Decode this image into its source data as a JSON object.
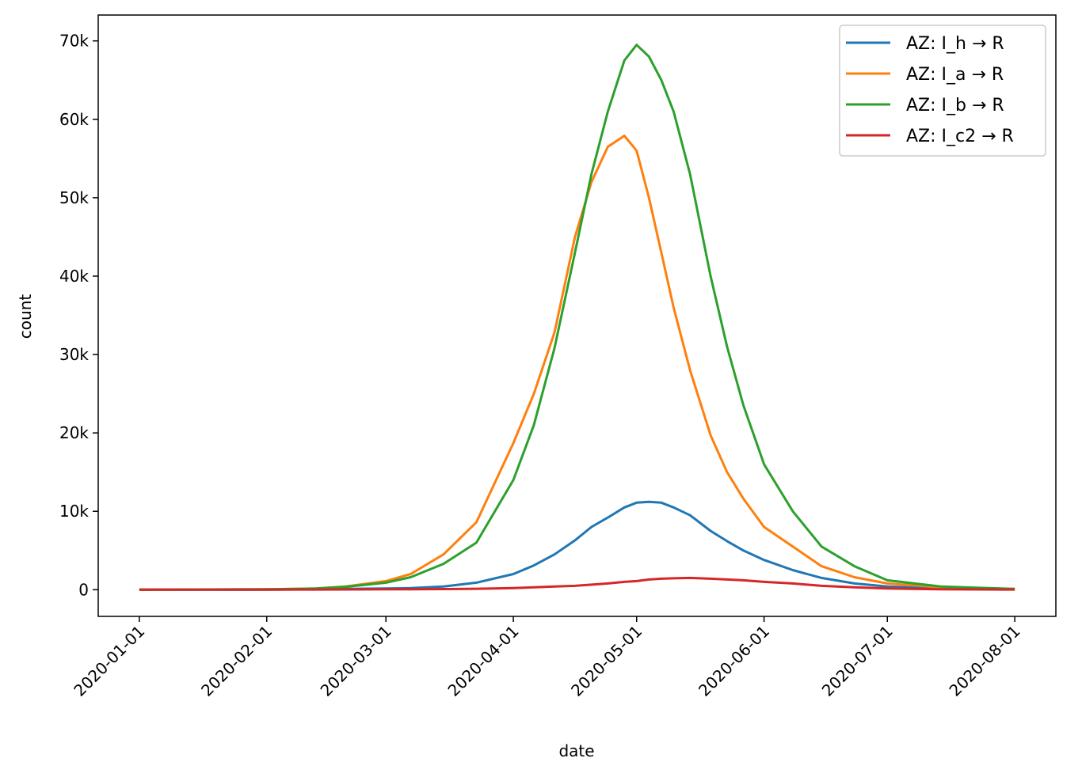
{
  "chart_data": {
    "type": "line",
    "title": "",
    "xlabel": "date",
    "ylabel": "count",
    "xlim_days": [
      -10,
      223
    ],
    "ylim": [
      -3400,
      73300
    ],
    "x_start_date": "2020-01-01",
    "x_ticks": [
      {
        "day": 0,
        "label": "2020-01-01"
      },
      {
        "day": 31,
        "label": "2020-02-01"
      },
      {
        "day": 60,
        "label": "2020-03-01"
      },
      {
        "day": 91,
        "label": "2020-04-01"
      },
      {
        "day": 121,
        "label": "2020-05-01"
      },
      {
        "day": 152,
        "label": "2020-06-01"
      },
      {
        "day": 182,
        "label": "2020-07-01"
      },
      {
        "day": 213,
        "label": "2020-08-01"
      }
    ],
    "y_ticks": [
      {
        "value": 0,
        "label": "0"
      },
      {
        "value": 10000,
        "label": "10k"
      },
      {
        "value": 20000,
        "label": "20k"
      },
      {
        "value": 30000,
        "label": "30k"
      },
      {
        "value": 40000,
        "label": "40k"
      },
      {
        "value": 50000,
        "label": "50k"
      },
      {
        "value": 60000,
        "label": "60k"
      },
      {
        "value": 70000,
        "label": "70k"
      }
    ],
    "grid": false,
    "legend_position": "top-right",
    "x_days": [
      0,
      31,
      43,
      50,
      60,
      66,
      74,
      82,
      91,
      96,
      101,
      106,
      110,
      114,
      118,
      121,
      124,
      127,
      130,
      134,
      139,
      143,
      147,
      152,
      159,
      166,
      174,
      182,
      195,
      213
    ],
    "series": [
      {
        "name": "AZ: I_h → R",
        "color": "#1f77b4",
        "values": [
          0,
          0,
          50,
          100,
          150,
          200,
          400,
          900,
          2000,
          3100,
          4500,
          6300,
          8000,
          9200,
          10500,
          11100,
          11200,
          11100,
          10500,
          9500,
          7500,
          6200,
          5000,
          3800,
          2500,
          1500,
          800,
          400,
          150,
          50
        ]
      },
      {
        "name": "AZ: I_a → R",
        "color": "#ff7f0e",
        "values": [
          0,
          50,
          150,
          400,
          1100,
          2000,
          4500,
          8600,
          18700,
          25000,
          32800,
          45000,
          52000,
          56500,
          57900,
          56000,
          50000,
          43000,
          36000,
          28000,
          19700,
          15000,
          11600,
          8000,
          5500,
          3000,
          1600,
          800,
          300,
          100
        ]
      },
      {
        "name": "AZ: I_b → R",
        "color": "#2ca02c",
        "values": [
          0,
          50,
          150,
          350,
          900,
          1600,
          3300,
          6000,
          14000,
          21000,
          30800,
          43000,
          53000,
          61000,
          67500,
          69500,
          68000,
          65000,
          61000,
          53000,
          40000,
          31000,
          23500,
          16000,
          10000,
          5500,
          3000,
          1200,
          400,
          100
        ]
      },
      {
        "name": "AZ: I_c2 → R",
        "color": "#d62728",
        "values": [
          0,
          0,
          20,
          30,
          50,
          50,
          80,
          120,
          200,
          300,
          400,
          500,
          650,
          800,
          1000,
          1100,
          1300,
          1400,
          1450,
          1500,
          1400,
          1300,
          1200,
          1000,
          800,
          500,
          300,
          150,
          50,
          20
        ]
      }
    ]
  }
}
